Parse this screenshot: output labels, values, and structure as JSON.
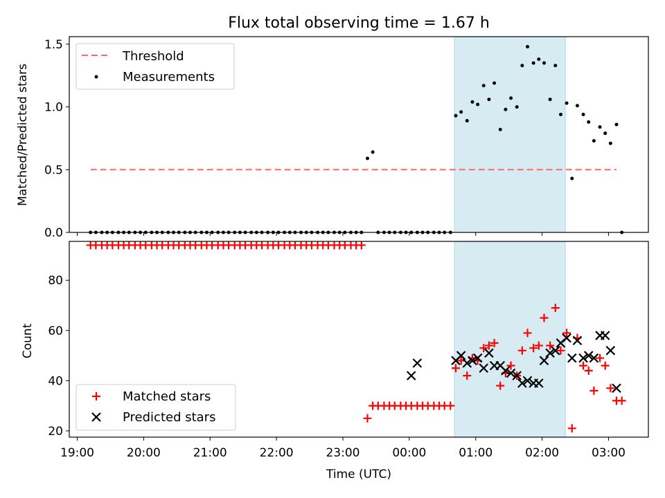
{
  "chart_data": [
    {
      "type": "scatter",
      "title": "Flux total observing time = 1.67 h",
      "xlabel": "",
      "ylabel": "Matched/Predicted stars",
      "ylim": [
        0,
        1.56
      ],
      "yticks": [
        "0.0",
        "0.5",
        "1.0",
        "1.5"
      ],
      "x_unit": "hours relative to 00:00 UTC",
      "xlim": [
        -5.12,
        3.6
      ],
      "shaded_interval": {
        "start": 0.68,
        "end": 2.35,
        "color": "#add8e6"
      },
      "legend": {
        "position": "upper-left",
        "entries": [
          "Threshold",
          "Measurements"
        ]
      },
      "threshold": {
        "name": "Threshold",
        "value": 0.5,
        "x_range": [
          -4.8,
          3.12
        ],
        "color": "#ff6666"
      },
      "series": [
        {
          "name": "Measurements",
          "marker": "dot",
          "color": "#000000",
          "x": [
            -4.8,
            -4.72,
            -4.63,
            -4.55,
            -4.47,
            -4.38,
            -4.3,
            -4.22,
            -4.13,
            -4.05,
            -3.97,
            -3.88,
            -3.8,
            -3.72,
            -3.63,
            -3.55,
            -3.47,
            -3.38,
            -3.3,
            -3.22,
            -3.13,
            -3.05,
            -2.97,
            -2.88,
            -2.8,
            -2.72,
            -2.63,
            -2.55,
            -2.47,
            -2.38,
            -2.3,
            -2.22,
            -2.13,
            -2.05,
            -1.97,
            -1.88,
            -1.8,
            -1.72,
            -1.63,
            -1.55,
            -1.47,
            -1.38,
            -1.3,
            -1.22,
            -1.13,
            -1.05,
            -0.97,
            -0.88,
            -0.8,
            -0.72,
            -0.63,
            -0.55,
            -0.47,
            -0.38,
            -0.3,
            -0.22,
            -0.13,
            -0.05,
            0.03,
            0.12,
            0.2,
            0.28,
            0.37,
            0.45,
            0.53,
            0.62,
            0.7,
            0.78,
            0.87,
            0.95,
            1.03,
            1.12,
            1.2,
            1.28,
            1.37,
            1.45,
            1.53,
            1.62,
            1.7,
            1.78,
            1.87,
            1.95,
            2.03,
            2.12,
            2.2,
            2.28,
            2.37,
            2.45,
            2.53,
            2.62,
            2.7,
            2.78,
            2.87,
            2.95,
            3.03,
            3.12,
            3.2
          ],
          "y": [
            0,
            0,
            0,
            0,
            0,
            0,
            0,
            0,
            0,
            0,
            0,
            0,
            0,
            0,
            0,
            0,
            0,
            0,
            0,
            0,
            0,
            0,
            0,
            0,
            0,
            0,
            0,
            0,
            0,
            0,
            0,
            0,
            0,
            0,
            0,
            0,
            0,
            0,
            0,
            0,
            0,
            0,
            0,
            0,
            0,
            0,
            0,
            0,
            0,
            0,
            0.59,
            0.64,
            0,
            0,
            0,
            0,
            0,
            0,
            0,
            0,
            0,
            0,
            0,
            0,
            0,
            0,
            0.93,
            0.96,
            0.89,
            1.04,
            1.02,
            1.17,
            1.06,
            1.19,
            0.82,
            0.98,
            1.07,
            1.0,
            1.33,
            1.48,
            1.35,
            1.38,
            1.35,
            1.06,
            1.33,
            0.94,
            1.03,
            0.43,
            1.01,
            0.94,
            0.88,
            0.73,
            0.84,
            0.79,
            0.71,
            0.86,
            0.0
          ]
        }
      ]
    },
    {
      "type": "scatter",
      "title": "",
      "xlabel": "Time (UTC)",
      "ylabel": "Count",
      "ylim": [
        17.5,
        95.5
      ],
      "yticks": [
        "20",
        "40",
        "60",
        "80"
      ],
      "xlim": [
        -5.12,
        3.6
      ],
      "xtick_labels": [
        "19:00",
        "20:00",
        "21:00",
        "22:00",
        "23:00",
        "00:00",
        "01:00",
        "02:00",
        "03:00"
      ],
      "shaded_interval": {
        "start": 0.68,
        "end": 2.35,
        "color": "#add8e6"
      },
      "legend": {
        "position": "lower-left",
        "entries": [
          "Matched stars",
          "Predicted stars"
        ]
      },
      "series": [
        {
          "name": "Matched stars",
          "marker": "plus",
          "color": "#ff0000",
          "x": [
            -4.8,
            -4.72,
            -4.63,
            -4.55,
            -4.47,
            -4.38,
            -4.3,
            -4.22,
            -4.13,
            -4.05,
            -3.97,
            -3.88,
            -3.8,
            -3.72,
            -3.63,
            -3.55,
            -3.47,
            -3.38,
            -3.3,
            -3.22,
            -3.13,
            -3.05,
            -2.97,
            -2.88,
            -2.8,
            -2.72,
            -2.63,
            -2.55,
            -2.47,
            -2.38,
            -2.3,
            -2.22,
            -2.13,
            -2.05,
            -1.97,
            -1.88,
            -1.8,
            -1.72,
            -1.63,
            -1.55,
            -1.47,
            -1.38,
            -1.3,
            -1.22,
            -1.13,
            -1.05,
            -0.97,
            -0.88,
            -0.8,
            -0.72,
            -0.63,
            -0.55,
            -0.47,
            -0.38,
            -0.3,
            -0.22,
            -0.13,
            -0.05,
            0.03,
            0.12,
            0.2,
            0.28,
            0.37,
            0.45,
            0.53,
            0.62,
            0.7,
            0.78,
            0.87,
            0.95,
            1.03,
            1.12,
            1.2,
            1.28,
            1.37,
            1.45,
            1.53,
            1.62,
            1.7,
            1.78,
            1.87,
            1.95,
            2.03,
            2.12,
            2.2,
            2.28,
            2.37,
            2.45,
            2.53,
            2.62,
            2.7,
            2.78,
            2.87,
            2.95,
            3.03,
            3.12,
            3.2
          ],
          "y": [
            94,
            94,
            94,
            94,
            94,
            94,
            94,
            94,
            94,
            94,
            94,
            94,
            94,
            94,
            94,
            94,
            94,
            94,
            94,
            94,
            94,
            94,
            94,
            94,
            94,
            94,
            94,
            94,
            94,
            94,
            94,
            94,
            94,
            94,
            94,
            94,
            94,
            94,
            94,
            94,
            94,
            94,
            94,
            94,
            94,
            94,
            94,
            94,
            94,
            94,
            25,
            30,
            30,
            30,
            30,
            30,
            30,
            30,
            30,
            30,
            30,
            30,
            30,
            30,
            30,
            30,
            45,
            48,
            42,
            49,
            48,
            53,
            54,
            55,
            38,
            43,
            46,
            42,
            52,
            59,
            53,
            54,
            65,
            54,
            69,
            52,
            59,
            21,
            57,
            46,
            44,
            36,
            49,
            46,
            37,
            32,
            32
          ]
        },
        {
          "name": "Predicted stars",
          "marker": "x",
          "color": "#000000",
          "x": [
            0.03,
            0.12,
            0.7,
            0.78,
            0.87,
            0.95,
            1.03,
            1.12,
            1.2,
            1.28,
            1.37,
            1.45,
            1.53,
            1.62,
            1.7,
            1.78,
            1.87,
            1.95,
            2.03,
            2.12,
            2.2,
            2.28,
            2.37,
            2.45,
            2.53,
            2.62,
            2.7,
            2.78,
            2.87,
            2.95,
            3.03,
            3.12
          ],
          "y": [
            42,
            47,
            48,
            50,
            47,
            48,
            49,
            45,
            51,
            46,
            46,
            44,
            43,
            42,
            39,
            40,
            39,
            39,
            48,
            51,
            52,
            55,
            57,
            49,
            56,
            49,
            50,
            49,
            58,
            58,
            52,
            37
          ]
        }
      ]
    }
  ]
}
